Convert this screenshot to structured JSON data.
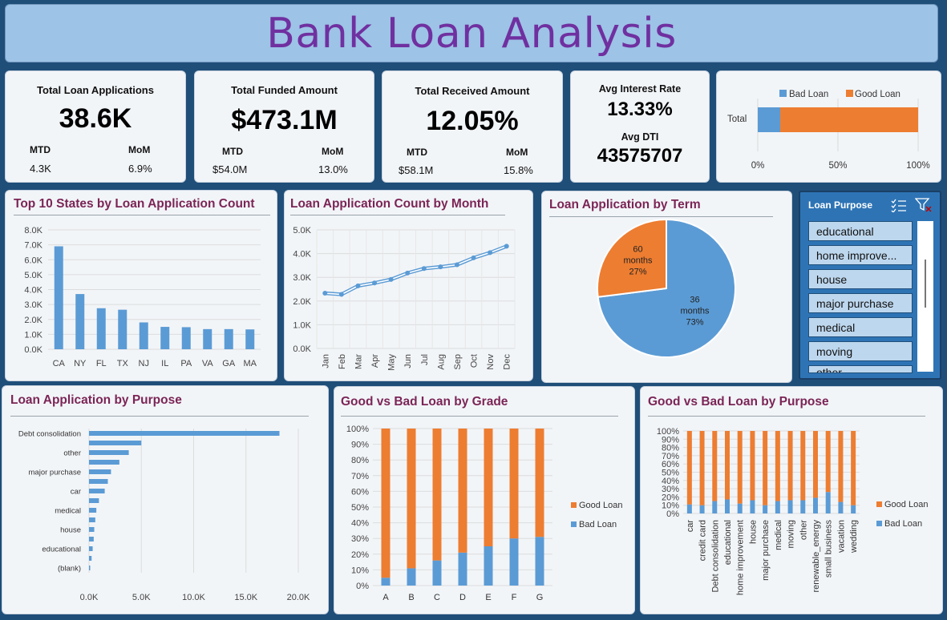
{
  "title": "Bank Loan Analysis",
  "kpis": {
    "applications": {
      "label": "Total Loan Applications",
      "value": "38.6K",
      "mtd_label": "MTD",
      "mom_label": "MoM",
      "mtd": "4.3K",
      "mom": "6.9%"
    },
    "funded": {
      "label": "Total Funded Amount",
      "value": "$473.1M",
      "mtd_label": "MTD",
      "mom_label": "MoM",
      "mtd": "$54.0M",
      "mom": "13.0%"
    },
    "received": {
      "label": "Total Received Amount",
      "value": "12.05%",
      "mtd_label": "MTD",
      "mom_label": "MoM",
      "mtd": "$58.1M",
      "mom": "15.8%"
    },
    "interest": {
      "label": "Avg Interest Rate",
      "value": "13.33%",
      "dti_label": "Avg DTI",
      "dti_value": "43575707"
    }
  },
  "colors": {
    "blue": "#5b9bd5",
    "orange": "#ed7d31",
    "title": "#7b2556"
  },
  "good_bad_total": {
    "legend_bad": "Bad Loan",
    "legend_good": "Good Loan",
    "category": "Total",
    "ticks": [
      "0%",
      "50%",
      "100%"
    ],
    "bad_share": 0.14
  },
  "panels": {
    "states": "Top 10 States by Loan Application Count",
    "month": "Loan Application Count by Month",
    "term": "Loan Application by Term",
    "purpose": "Loan Application by Purpose",
    "grade": "Good vs Bad Loan by Grade",
    "gb_purpose": "Good vs Bad Loan by Purpose"
  },
  "slicer": {
    "title": "Loan Purpose",
    "items": [
      "educational",
      "home improve...",
      "house",
      "major purchase",
      "medical",
      "moving",
      "other"
    ]
  },
  "chart_data": [
    {
      "id": "states",
      "type": "bar",
      "title": "Top 10 States by Loan Application Count",
      "categories": [
        "CA",
        "NY",
        "FL",
        "TX",
        "NJ",
        "IL",
        "PA",
        "VA",
        "GA",
        "MA"
      ],
      "values": [
        6900,
        3700,
        2750,
        2650,
        1800,
        1500,
        1480,
        1350,
        1350,
        1330
      ],
      "ylim": [
        0,
        8000
      ],
      "yticks": [
        "0.0K",
        "1.0K",
        "2.0K",
        "3.0K",
        "4.0K",
        "5.0K",
        "6.0K",
        "7.0K",
        "8.0K"
      ]
    },
    {
      "id": "month",
      "type": "line",
      "title": "Loan Application Count by Month",
      "categories": [
        "Jan",
        "Feb",
        "Mar",
        "Apr",
        "May",
        "Jun",
        "Jul",
        "Aug",
        "Sep",
        "Oct",
        "Nov",
        "Dec"
      ],
      "values": [
        2330,
        2280,
        2640,
        2760,
        2910,
        3180,
        3370,
        3440,
        3530,
        3820,
        4040,
        4310
      ],
      "ylim": [
        0,
        5000
      ],
      "yticks": [
        "0.0K",
        "1.0K",
        "2.0K",
        "3.0K",
        "4.0K",
        "5.0K"
      ]
    },
    {
      "id": "term",
      "type": "pie",
      "title": "Loan Application by Term",
      "slices": [
        {
          "label": "36 months",
          "percent_label": "73%",
          "value": 73
        },
        {
          "label": "60 months",
          "percent_label": "27%",
          "value": 27
        }
      ]
    },
    {
      "id": "purpose",
      "type": "bar",
      "title": "Loan Application by Purpose",
      "categories": [
        "Debt consolidation",
        "",
        "other",
        "",
        "major purchase",
        "",
        "car",
        "",
        "medical",
        "",
        "house",
        "",
        "educational",
        "",
        "(blank)"
      ],
      "values": [
        18200,
        5000,
        3800,
        2900,
        2100,
        1800,
        1500,
        950,
        700,
        600,
        500,
        450,
        350,
        250,
        0
      ],
      "xlim": [
        0,
        20000
      ],
      "xticks": [
        "0.0K",
        "5.0K",
        "10.0K",
        "15.0K",
        "20.0K"
      ]
    },
    {
      "id": "grade",
      "type": "bar",
      "title": "Good vs Bad Loan by Grade",
      "categories": [
        "A",
        "B",
        "C",
        "D",
        "E",
        "F",
        "G"
      ],
      "series": [
        {
          "name": "Bad Loan",
          "values": [
            5,
            11,
            16,
            21,
            25,
            30,
            31
          ]
        },
        {
          "name": "Good Loan",
          "values": [
            95,
            89,
            84,
            79,
            75,
            70,
            69
          ]
        }
      ],
      "ylim": [
        0,
        100
      ],
      "yticks": [
        "0%",
        "10%",
        "20%",
        "30%",
        "40%",
        "50%",
        "60%",
        "70%",
        "80%",
        "90%",
        "100%"
      ]
    },
    {
      "id": "gb_purpose",
      "type": "bar",
      "title": "Good vs Bad Loan by Purpose",
      "categories": [
        "car",
        "credit card",
        "Debt consolidation",
        "educational",
        "home improvement",
        "house",
        "major purchase",
        "medical",
        "moving",
        "other",
        "renewable_energy",
        "small business",
        "vacation",
        "wedding"
      ],
      "series": [
        {
          "name": "Bad Loan",
          "values": [
            11,
            10,
            15,
            17,
            12,
            16,
            10,
            15,
            16,
            16,
            19,
            26,
            14,
            10
          ]
        },
        {
          "name": "Good Loan",
          "values": [
            89,
            90,
            85,
            83,
            88,
            84,
            90,
            85,
            84,
            84,
            81,
            74,
            86,
            90
          ]
        }
      ],
      "ylim": [
        0,
        100
      ],
      "yticks": [
        "0%",
        "10%",
        "20%",
        "30%",
        "40%",
        "50%",
        "60%",
        "70%",
        "80%",
        "90%",
        "100%"
      ]
    }
  ]
}
